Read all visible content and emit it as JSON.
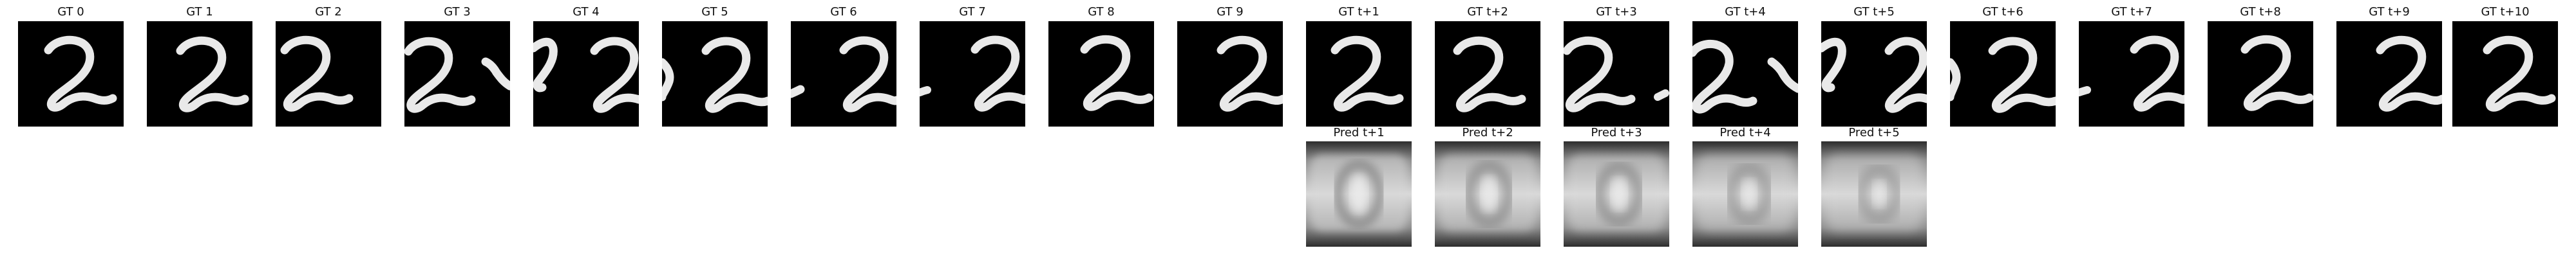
{
  "colors": {
    "background": "#ffffff",
    "frame_background": "#000000",
    "digit_stroke": "#e9e9e9",
    "title_text": "#111111",
    "pred_dark": "#2d2d2d",
    "pred_mid": "#8d8d8d",
    "pred_light": "#d9d9d9"
  },
  "icons": {
    "gt_frame": "digit-two-frame-icon",
    "pred_frame": "blurry-prediction-frame-icon"
  },
  "ground_truth": {
    "labels": [
      "GT 0",
      "GT 1",
      "GT 2",
      "GT 3",
      "GT 4",
      "GT 5",
      "GT 6",
      "GT 7",
      "GT 8",
      "GT 9",
      "GT t+1",
      "GT t+2",
      "GT t+3",
      "GT t+4",
      "GT t+5",
      "GT t+6",
      "GT t+7",
      "GT t+8",
      "GT t+9",
      "GT t+10"
    ]
  },
  "predictions": {
    "labels": [
      "Pred t+1",
      "Pred t+2",
      "Pred t+3",
      "Pred t+4",
      "Pred t+5"
    ]
  }
}
